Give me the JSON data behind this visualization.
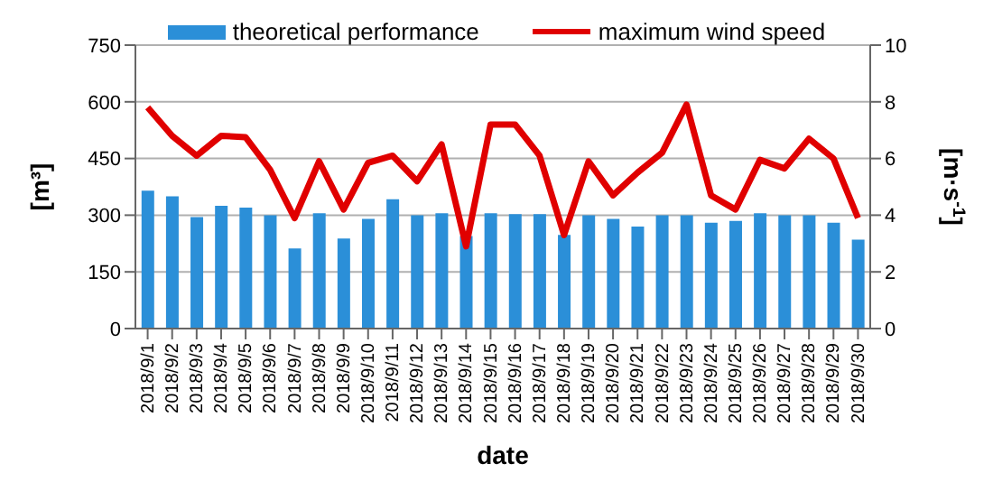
{
  "chart_data": {
    "type": "bar",
    "xlabel": "date",
    "ylabel": "[m³]",
    "y2label": "[m·s$^{-1}$]",
    "categories": [
      "2018/9/1",
      "2018/9/2",
      "2018/9/3",
      "2018/9/4",
      "2018/9/5",
      "2018/9/6",
      "2018/9/7",
      "2018/9/8",
      "2018/9/9",
      "2018/9/10",
      "2018/9/11",
      "2018/9/12",
      "2018/9/13",
      "2018/9/14",
      "2018/9/15",
      "2018/9/16",
      "2018/9/17",
      "2018/9/18",
      "2018/9/19",
      "2018/9/20",
      "2018/9/21",
      "2018/9/22",
      "2018/9/23",
      "2018/9/24",
      "2018/9/25",
      "2018/9/26",
      "2018/9/27",
      "2018/9/28",
      "2018/9/29",
      "2018/9/30"
    ],
    "series": [
      {
        "name": "theoretical performance",
        "color": "#2b8fd8",
        "values": [
          365,
          350,
          295,
          325,
          320,
          300,
          212,
          305,
          238,
          290,
          342,
          300,
          305,
          245,
          305,
          303,
          303,
          248,
          300,
          290,
          270,
          300,
          300,
          280,
          285,
          305,
          300,
          300,
          280,
          235
        ]
      },
      {
        "name": "maximum wind speed",
        "type": "line",
        "axis": "y2",
        "color": "#e00000",
        "values": [
          7.8,
          6.8,
          6.1,
          6.8,
          6.75,
          5.6,
          3.9,
          5.9,
          4.2,
          5.85,
          6.1,
          5.2,
          6.5,
          2.9,
          7.2,
          7.2,
          6.1,
          3.3,
          5.9,
          4.7,
          5.5,
          6.2,
          7.9,
          4.7,
          4.2,
          5.95,
          5.65,
          6.7,
          6.0,
          3.9
        ]
      }
    ],
    "ylim": [
      0,
      750
    ],
    "yticks": [
      0,
      150,
      300,
      450,
      600,
      750
    ],
    "y2lim": [
      0,
      10
    ],
    "y2ticks": [
      0,
      2,
      4,
      6,
      8,
      10
    ],
    "grid": "y",
    "legend": "top",
    "marker": "none",
    "line_style": "solid"
  }
}
